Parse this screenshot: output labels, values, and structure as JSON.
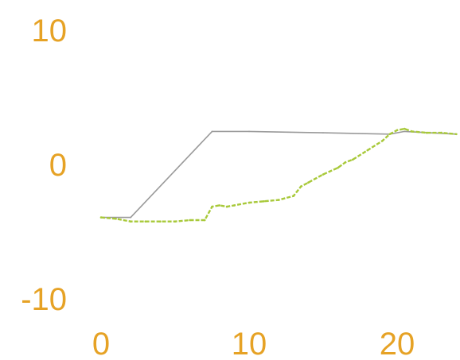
{
  "chart_data": {
    "type": "line",
    "title": "",
    "xlabel": "",
    "ylabel": "",
    "xlim": [
      0,
      24
    ],
    "ylim": [
      -10,
      10
    ],
    "grid": false,
    "legend": "none",
    "x_ticks": [
      {
        "value": 0,
        "label": "0"
      },
      {
        "value": 10,
        "label": "10"
      },
      {
        "value": 20,
        "label": "20"
      }
    ],
    "y_ticks": [
      {
        "value": 10,
        "label": "10"
      },
      {
        "value": 0,
        "label": "0"
      },
      {
        "value": -10,
        "label": "-10"
      }
    ],
    "series": [
      {
        "color": "#9a9a9a",
        "x": [
          0,
          2,
          7.5,
          10,
          15,
          19.5,
          20.5,
          24
        ],
        "y": [
          -4.0,
          -4.0,
          2.4,
          2.4,
          2.3,
          2.2,
          2.4,
          2.2
        ]
      },
      {
        "color": "#a8c93a",
        "x": [
          0,
          1,
          2,
          3,
          4,
          5,
          6,
          7,
          7.5,
          8,
          8.5,
          9,
          10,
          11,
          12,
          13,
          13.5,
          14,
          15,
          16,
          16.5,
          17,
          18,
          19,
          19.5,
          20,
          20.5,
          21,
          22,
          23,
          24
        ],
        "y": [
          -4.0,
          -4.1,
          -4.3,
          -4.3,
          -4.3,
          -4.3,
          -4.2,
          -4.2,
          -3.2,
          -3.1,
          -3.2,
          -3.1,
          -2.9,
          -2.8,
          -2.7,
          -2.4,
          -1.7,
          -1.4,
          -0.8,
          -0.3,
          0.1,
          0.3,
          1.0,
          1.7,
          2.2,
          2.5,
          2.6,
          2.4,
          2.3,
          2.3,
          2.2
        ]
      }
    ]
  }
}
